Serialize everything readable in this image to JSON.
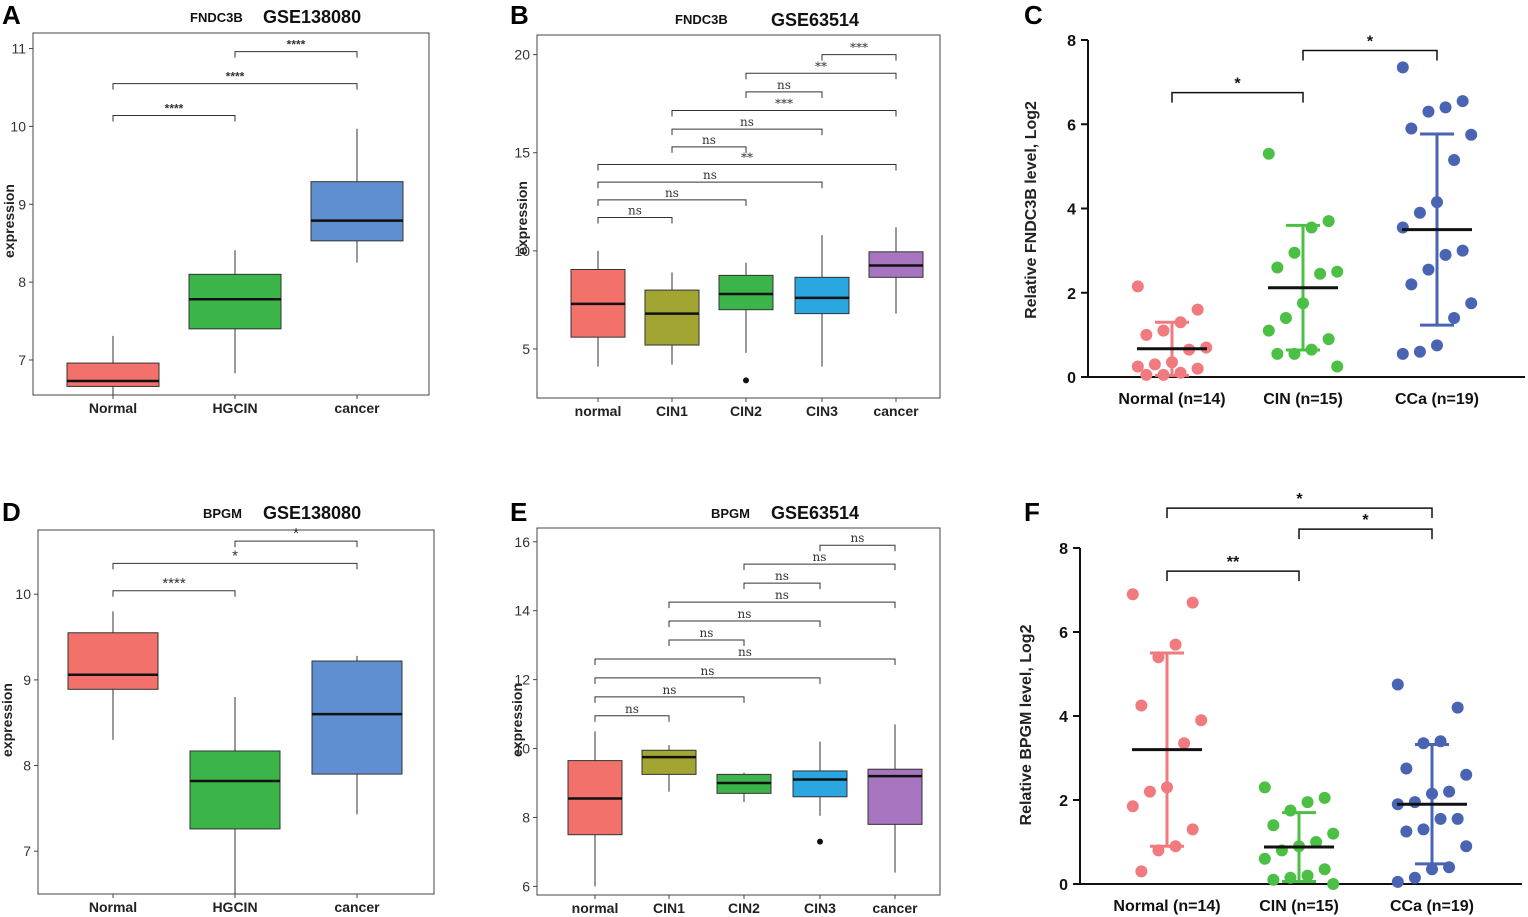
{
  "chart_data": [
    {
      "panel": "A",
      "type": "box",
      "gene": "FNDC3B",
      "dataset": "GSE138080",
      "ylabel": "expression",
      "ylim": [
        6.55,
        11.2
      ],
      "yticks": [
        7,
        8,
        9,
        10,
        11
      ],
      "categories": [
        "Normal",
        "HGCIN",
        "cancer"
      ],
      "colors": [
        "#f2716b",
        "#3bb54a",
        "#5f8fd0"
      ],
      "boxes": [
        {
          "min": 6.55,
          "q1": 6.66,
          "median": 6.73,
          "q3": 6.96,
          "max": 7.31,
          "outliers": []
        },
        {
          "min": 6.83,
          "q1": 7.4,
          "median": 7.78,
          "q3": 8.1,
          "max": 8.41,
          "outliers": []
        },
        {
          "min": 8.25,
          "q1": 8.53,
          "median": 8.79,
          "q3": 9.29,
          "max": 9.97,
          "outliers": []
        }
      ],
      "comparisons": [
        {
          "from": 0,
          "to": 1,
          "y": 10.14,
          "label": "****"
        },
        {
          "from": 0,
          "to": 2,
          "y": 10.55,
          "label": "****"
        },
        {
          "from": 1,
          "to": 2,
          "y": 10.96,
          "label": "****"
        }
      ],
      "label_style": "bold"
    },
    {
      "panel": "B",
      "type": "box",
      "gene": "FNDC3B",
      "dataset": "GSE63514",
      "ylabel": "expression",
      "ylim": [
        2.5,
        21
      ],
      "yticks": [
        5,
        10,
        15,
        20
      ],
      "categories": [
        "normal",
        "CIN1",
        "CIN2",
        "CIN3",
        "cancer"
      ],
      "colors": [
        "#f2716b",
        "#a3a532",
        "#3bb54a",
        "#2aa6e0",
        "#a775c0"
      ],
      "boxes": [
        {
          "min": 4.1,
          "q1": 5.6,
          "median": 7.3,
          "q3": 9.05,
          "max": 10.0,
          "outliers": []
        },
        {
          "min": 4.2,
          "q1": 5.2,
          "median": 6.8,
          "q3": 8.0,
          "max": 8.9,
          "outliers": []
        },
        {
          "min": 4.8,
          "q1": 7.0,
          "median": 7.8,
          "q3": 8.75,
          "max": 9.4,
          "outliers": [
            3.4
          ]
        },
        {
          "min": 4.1,
          "q1": 6.8,
          "median": 7.6,
          "q3": 8.65,
          "max": 10.8,
          "outliers": []
        },
        {
          "min": 6.8,
          "q1": 8.65,
          "median": 9.25,
          "q3": 9.95,
          "max": 11.2,
          "outliers": []
        }
      ],
      "comparisons": [
        {
          "from": 0,
          "to": 1,
          "y": 11.7,
          "label": "ns"
        },
        {
          "from": 0,
          "to": 2,
          "y": 12.6,
          "label": "ns"
        },
        {
          "from": 0,
          "to": 3,
          "y": 13.5,
          "label": "ns"
        },
        {
          "from": 0,
          "to": 4,
          "y": 14.4,
          "label": "**"
        },
        {
          "from": 1,
          "to": 2,
          "y": 15.3,
          "label": "ns"
        },
        {
          "from": 1,
          "to": 3,
          "y": 16.2,
          "label": "ns"
        },
        {
          "from": 1,
          "to": 4,
          "y": 17.15,
          "label": "***"
        },
        {
          "from": 2,
          "to": 3,
          "y": 18.1,
          "label": "ns"
        },
        {
          "from": 2,
          "to": 4,
          "y": 19.05,
          "label": "**"
        },
        {
          "from": 3,
          "to": 4,
          "y": 20.0,
          "label": "***"
        }
      ],
      "label_style": "serif"
    },
    {
      "panel": "C",
      "type": "scatter",
      "gene": "FNDC3B",
      "ylabel": "Relative FNDC3B level, Log2",
      "ylim": [
        0,
        8
      ],
      "yticks": [
        0,
        2,
        4,
        6,
        8
      ],
      "categories": [
        "Normal (n=14)",
        "CIN (n=15)",
        "CCa (n=19)"
      ],
      "colors": [
        "#f07a7e",
        "#4cbf45",
        "#4a64b4"
      ],
      "groups": [
        {
          "mean": 0.67,
          "sd": 0.63,
          "points": [
            2.15,
            1.6,
            1.3,
            1.1,
            1.0,
            0.7,
            0.65,
            0.35,
            0.3,
            0.25,
            0.2,
            0.1,
            0.05,
            0.05
          ]
        },
        {
          "mean": 2.12,
          "sd": 1.48,
          "points": [
            5.3,
            3.7,
            3.55,
            2.95,
            2.6,
            2.5,
            2.45,
            1.75,
            1.4,
            1.1,
            0.9,
            0.65,
            0.55,
            0.55,
            0.25
          ]
        },
        {
          "mean": 3.5,
          "sd": 2.27,
          "points": [
            7.35,
            6.55,
            6.4,
            6.3,
            5.9,
            5.75,
            5.15,
            4.15,
            3.9,
            3.55,
            3.0,
            2.9,
            2.55,
            2.2,
            1.75,
            1.4,
            0.75,
            0.6,
            0.55
          ]
        }
      ],
      "comparisons": [
        {
          "from": 0,
          "to": 1,
          "y": 6.75,
          "label": "*"
        },
        {
          "from": 1,
          "to": 2,
          "y": 7.75,
          "label": "*"
        }
      ]
    },
    {
      "panel": "D",
      "type": "box",
      "gene": "BPGM",
      "dataset": "GSE138080",
      "ylabel": "expression",
      "ylim": [
        6.5,
        10.75
      ],
      "yticks": [
        7,
        8,
        9,
        10
      ],
      "categories": [
        "Normal",
        "HGCIN",
        "cancer"
      ],
      "colors": [
        "#f2716b",
        "#3bb54a",
        "#5f8fd0"
      ],
      "boxes": [
        {
          "min": 8.3,
          "q1": 8.89,
          "median": 9.06,
          "q3": 9.55,
          "max": 9.8,
          "outliers": []
        },
        {
          "min": 6.5,
          "q1": 7.26,
          "median": 7.82,
          "q3": 8.17,
          "max": 8.8,
          "outliers": []
        },
        {
          "min": 7.43,
          "q1": 7.9,
          "median": 8.6,
          "q3": 9.22,
          "max": 9.28,
          "outliers": []
        }
      ],
      "comparisons": [
        {
          "from": 0,
          "to": 1,
          "y": 10.04,
          "label": "****"
        },
        {
          "from": 0,
          "to": 2,
          "y": 10.36,
          "label": "*"
        },
        {
          "from": 1,
          "to": 2,
          "y": 10.62,
          "label": "*"
        }
      ],
      "label_style": "sans"
    },
    {
      "panel": "E",
      "type": "box",
      "gene": "BPGM",
      "dataset": "GSE63514",
      "ylabel": "expression",
      "ylim": [
        5.75,
        16.4
      ],
      "yticks": [
        6,
        8,
        10,
        12,
        14,
        16
      ],
      "categories": [
        "normal",
        "CIN1",
        "CIN2",
        "CIN3",
        "cancer"
      ],
      "colors": [
        "#f2716b",
        "#a3a532",
        "#3bb54a",
        "#2aa6e0",
        "#a775c0"
      ],
      "boxes": [
        {
          "min": 6.0,
          "q1": 7.5,
          "median": 8.55,
          "q3": 9.65,
          "max": 10.5,
          "outliers": []
        },
        {
          "min": 8.75,
          "q1": 9.25,
          "median": 9.75,
          "q3": 9.95,
          "max": 10.1,
          "outliers": []
        },
        {
          "min": 8.45,
          "q1": 8.7,
          "median": 9.0,
          "q3": 9.25,
          "max": 9.3,
          "outliers": []
        },
        {
          "min": 8.05,
          "q1": 8.6,
          "median": 9.1,
          "q3": 9.35,
          "max": 10.2,
          "outliers": [
            7.3
          ]
        },
        {
          "min": 6.4,
          "q1": 7.8,
          "median": 9.2,
          "q3": 9.4,
          "max": 10.7,
          "outliers": []
        }
      ],
      "comparisons": [
        {
          "from": 0,
          "to": 1,
          "y": 10.95,
          "label": "ns"
        },
        {
          "from": 0,
          "to": 2,
          "y": 11.5,
          "label": "ns"
        },
        {
          "from": 0,
          "to": 3,
          "y": 12.05,
          "label": "ns"
        },
        {
          "from": 0,
          "to": 4,
          "y": 12.6,
          "label": "ns"
        },
        {
          "from": 1,
          "to": 2,
          "y": 13.15,
          "label": "ns"
        },
        {
          "from": 1,
          "to": 3,
          "y": 13.7,
          "label": "ns"
        },
        {
          "from": 1,
          "to": 4,
          "y": 14.25,
          "label": "ns"
        },
        {
          "from": 2,
          "to": 3,
          "y": 14.8,
          "label": "ns"
        },
        {
          "from": 2,
          "to": 4,
          "y": 15.35,
          "label": "ns"
        },
        {
          "from": 3,
          "to": 4,
          "y": 15.9,
          "label": "ns"
        }
      ],
      "label_style": "serif"
    },
    {
      "panel": "F",
      "type": "scatter",
      "gene": "BPGM",
      "ylabel": "Relative BPGM level, Log2",
      "ylim": [
        0,
        8
      ],
      "yticks": [
        0,
        2,
        4,
        6,
        8
      ],
      "categories": [
        "Normal (n=14)",
        "CIN (n=15)",
        "CCa (n=19)"
      ],
      "colors": [
        "#f07a7e",
        "#4cbf45",
        "#4a64b4"
      ],
      "groups": [
        {
          "mean": 3.2,
          "sd": 2.3,
          "points": [
            6.9,
            6.7,
            5.7,
            5.4,
            4.25,
            3.9,
            3.35,
            2.3,
            2.2,
            1.85,
            1.3,
            0.9,
            0.8,
            0.3
          ]
        },
        {
          "mean": 0.88,
          "sd": 0.82,
          "points": [
            2.3,
            2.05,
            1.95,
            1.75,
            1.4,
            1.2,
            1.0,
            0.9,
            0.8,
            0.6,
            0.35,
            0.2,
            0.15,
            0.1,
            0.0
          ]
        },
        {
          "mean": 1.9,
          "sd": 1.42,
          "points": [
            4.75,
            4.2,
            3.4,
            3.35,
            2.75,
            2.6,
            2.2,
            2.15,
            1.95,
            1.9,
            1.55,
            1.55,
            1.3,
            1.25,
            0.9,
            0.4,
            0.35,
            0.15,
            0.05
          ]
        }
      ],
      "comparisons": [
        {
          "from": 0,
          "to": 1,
          "y": 7.45,
          "label": "**"
        },
        {
          "from": 1,
          "to": 2,
          "y": 8.45,
          "label": "*"
        },
        {
          "from": 0,
          "to": 2,
          "y": 8.95,
          "label": "*"
        }
      ]
    }
  ]
}
